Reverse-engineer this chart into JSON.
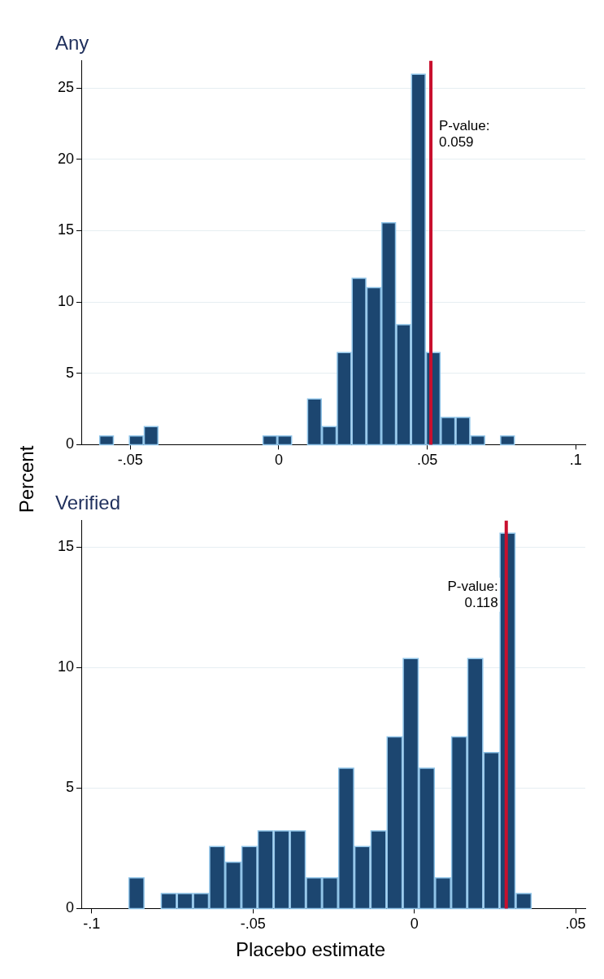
{
  "chart_data": [
    {
      "type": "histogram",
      "title": "Any",
      "ylabel": "Percent",
      "color": "#1c4670",
      "bins": [
        -0.0605,
        -0.0555,
        -0.0505,
        -0.0455,
        -0.0405,
        -0.0355,
        -0.0305,
        -0.0255,
        -0.0205,
        -0.0155,
        -0.0105,
        -0.0055,
        -0.0005,
        0.0045,
        0.0095,
        0.0145,
        0.0195,
        0.0245,
        0.0295,
        0.0345,
        0.0395,
        0.0445,
        0.0495,
        0.0545,
        0.0595,
        0.0645,
        0.0695,
        0.0745,
        0.0795
      ],
      "values": [
        0.65,
        0,
        0.65,
        1.3,
        0,
        0,
        0,
        0,
        0,
        0,
        0,
        0.65,
        0.65,
        0,
        3.25,
        1.3,
        6.5,
        11.7,
        11.05,
        15.6,
        8.45,
        26,
        6.5,
        1.95,
        1.95,
        0.65,
        0,
        0.65
      ],
      "xlim": [
        -0.0665,
        0.1032
      ],
      "ylim": [
        0,
        26.9
      ],
      "xticks": [
        {
          "value": -0.05,
          "label": "-.05"
        },
        0,
        {
          "value": 0.05,
          "label": ".05"
        },
        {
          "value": 0.1,
          "label": ".1"
        }
      ],
      "yticks": [
        0,
        5,
        10,
        15,
        20,
        25
      ],
      "grid": "y",
      "legend": false,
      "ref_lines": [
        {
          "axis": "x",
          "value": 0.0512,
          "color": "#c8102e"
        }
      ],
      "annotations": [
        "P-value:\n0.059"
      ]
    },
    {
      "type": "histogram",
      "title": "Verified",
      "xlabel": "Placebo estimate",
      "color": "#1c4670",
      "bins": [
        -0.0886,
        -0.0836,
        -0.0786,
        -0.0736,
        -0.0686,
        -0.0636,
        -0.0586,
        -0.0536,
        -0.0486,
        -0.0436,
        -0.0386,
        -0.0336,
        -0.0286,
        -0.0236,
        -0.0186,
        -0.0136,
        -0.0086,
        -0.0036,
        0.0014,
        0.0064,
        0.0114,
        0.0164,
        0.0214,
        0.0264,
        0.0314,
        0.0364
      ],
      "values": [
        1.3,
        0,
        0.65,
        0.65,
        0.65,
        2.6,
        1.95,
        2.6,
        3.25,
        3.25,
        3.25,
        1.3,
        1.3,
        5.85,
        2.6,
        3.25,
        7.15,
        10.4,
        5.85,
        1.3,
        7.15,
        10.4,
        6.5,
        15.6,
        0.65
      ],
      "xlim": [
        -0.1032,
        0.053
      ],
      "ylim": [
        0,
        16.1
      ],
      "xticks": [
        {
          "value": -0.1,
          "label": "-.1"
        },
        {
          "value": -0.05,
          "label": "-.05"
        },
        0,
        {
          "value": 0.05,
          "label": ".05"
        }
      ],
      "yticks": [
        0,
        5,
        10,
        15
      ],
      "grid": "y",
      "legend": false,
      "ref_lines": [
        {
          "axis": "x",
          "value": 0.0285,
          "color": "#c8102e"
        }
      ],
      "annotations": [
        "P-value:\n0.118"
      ]
    }
  ]
}
